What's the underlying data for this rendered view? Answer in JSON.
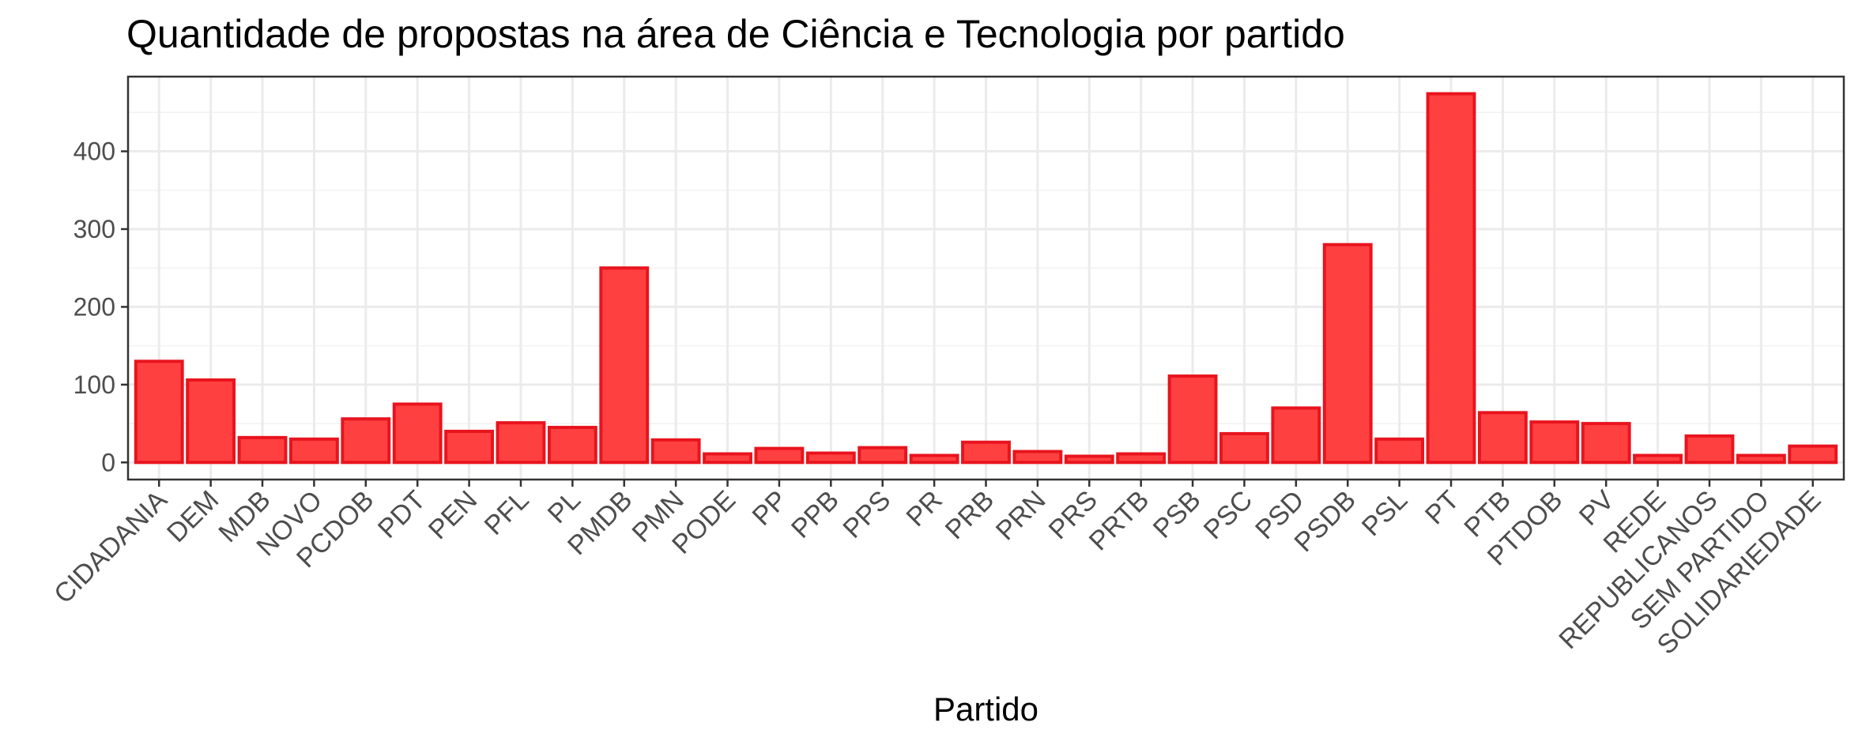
{
  "chart_data": {
    "type": "bar",
    "title": "Quantidade de propostas na área de Ciência e Tecnologia por partido",
    "xlabel": "Partido",
    "ylabel": "",
    "categories": [
      "CIDADANIA",
      "DEM",
      "MDB",
      "NOVO",
      "PCDOB",
      "PDT",
      "PEN",
      "PFL",
      "PL",
      "PMDB",
      "PMN",
      "PODE",
      "PP",
      "PPB",
      "PPS",
      "PR",
      "PRB",
      "PRN",
      "PRS",
      "PRTB",
      "PSB",
      "PSC",
      "PSD",
      "PSDB",
      "PSL",
      "PT",
      "PTB",
      "PTDOB",
      "PV",
      "REDE",
      "REPUBLICANOS",
      "SEM PARTIDO",
      "SOLIDARIEDADE"
    ],
    "values": [
      130,
      106,
      32,
      30,
      56,
      75,
      40,
      51,
      45,
      250,
      29,
      11,
      18,
      12,
      19,
      9,
      26,
      14,
      8,
      11,
      111,
      37,
      70,
      280,
      30,
      474,
      64,
      52,
      50,
      9,
      34,
      9,
      21
    ],
    "ylim": [
      -22,
      496
    ],
    "yticks": [
      0,
      100,
      200,
      300,
      400
    ],
    "yticklabels": [
      "0",
      "100",
      "200",
      "300",
      "400"
    ],
    "grid": true,
    "legend": "none",
    "colors": {
      "bar_fill": "#ff4040",
      "bar_stroke": "#e8141e"
    }
  }
}
